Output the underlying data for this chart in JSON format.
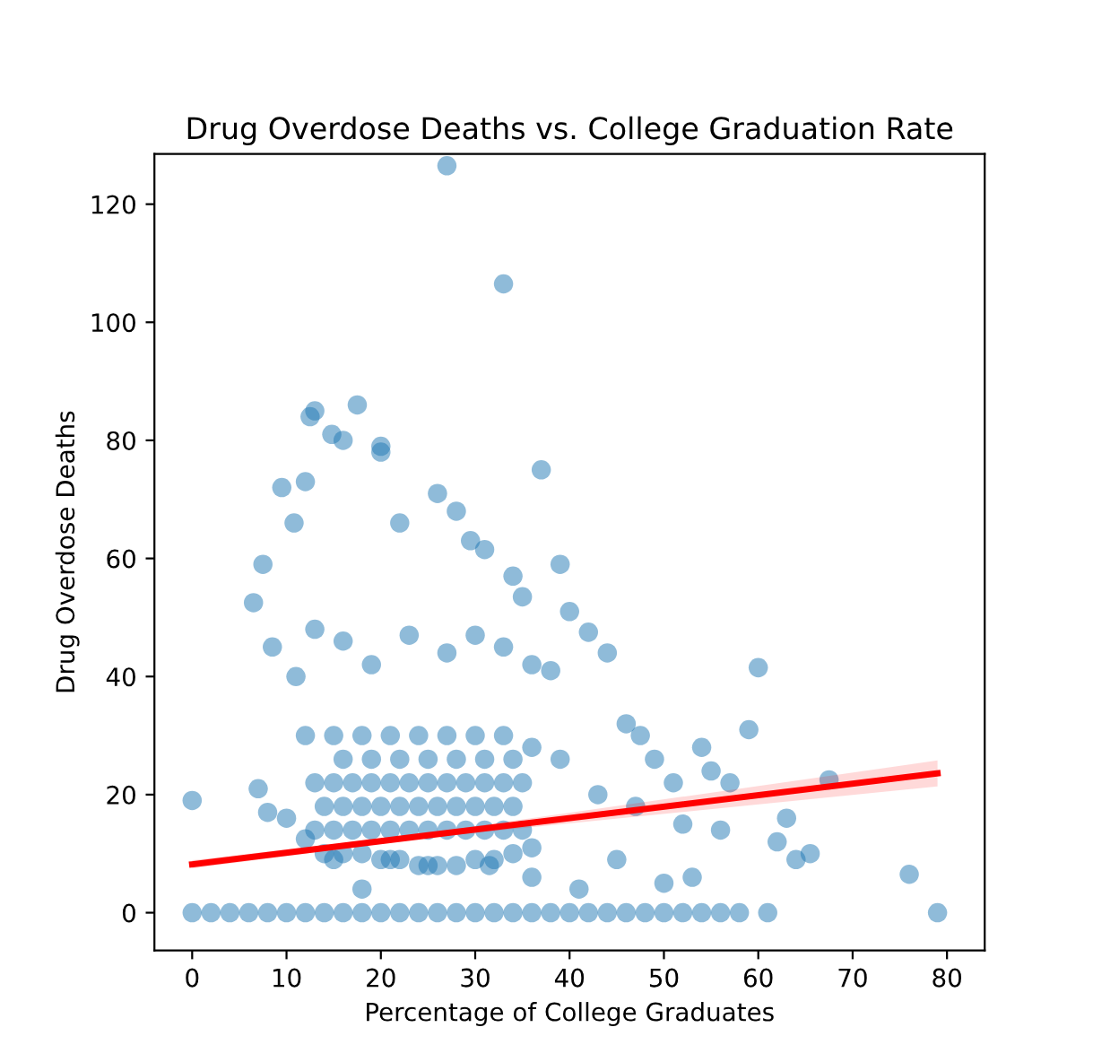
{
  "chart_data": {
    "type": "scatter",
    "title": "Drug Overdose Deaths vs. College Graduation Rate",
    "xlabel": "Percentage of College Graduates",
    "ylabel": "Drug Overdose Deaths",
    "xlim": [
      -4,
      84
    ],
    "ylim": [
      -6.4,
      128.5
    ],
    "xticks": [
      0,
      10,
      20,
      30,
      40,
      50,
      60,
      70,
      80
    ],
    "yticks": [
      0,
      20,
      40,
      60,
      80,
      100,
      120
    ],
    "grid": false,
    "legend": false,
    "series": [
      {
        "color": "#1f77b4",
        "marker": "circle",
        "x": [
          13,
          15,
          17,
          19,
          21,
          23,
          25,
          27,
          29,
          31,
          33,
          35,
          14,
          16,
          18,
          20,
          22,
          24,
          26,
          28,
          30,
          32,
          34,
          13,
          15,
          17,
          19,
          21,
          23,
          25,
          27,
          29,
          31,
          33,
          35,
          16,
          19,
          22,
          25,
          28,
          31,
          34,
          0,
          0,
          2,
          4,
          6,
          8,
          10,
          12,
          14,
          16,
          18,
          20,
          22,
          24,
          26,
          28,
          30,
          32,
          34,
          36,
          38,
          40,
          42,
          44,
          46,
          48,
          50,
          52,
          54,
          56,
          58,
          61,
          79,
          27,
          33,
          17.5,
          12.5,
          13,
          14.8,
          16,
          20,
          20,
          22,
          9.5,
          12,
          10.8,
          7.5,
          6.5,
          7,
          8,
          26,
          28,
          29.5,
          31,
          34,
          35,
          37,
          39,
          40,
          42,
          44,
          46,
          47.5,
          49,
          51,
          54,
          57,
          60,
          63,
          67.5,
          76,
          62,
          64,
          65.5,
          59,
          55,
          53,
          50,
          45,
          41,
          36,
          31.5,
          25,
          21,
          18,
          15,
          12,
          10,
          8.5,
          11,
          13,
          16,
          19,
          23,
          27,
          30,
          33,
          36,
          38,
          14,
          16,
          18,
          20,
          22,
          24,
          26,
          28,
          30,
          32,
          34,
          36,
          12,
          15,
          18,
          21,
          24,
          27,
          30,
          33,
          36,
          39,
          43,
          47,
          52,
          56
        ],
        "values": [
          14,
          14,
          14,
          14,
          14,
          14,
          14,
          14,
          14,
          14,
          14,
          14,
          18,
          18,
          18,
          18,
          18,
          18,
          18,
          18,
          18,
          18,
          18,
          22,
          22,
          22,
          22,
          22,
          22,
          22,
          22,
          22,
          22,
          22,
          22,
          26,
          26,
          26,
          26,
          26,
          26,
          26,
          19,
          0,
          0,
          0,
          0,
          0,
          0,
          0,
          0,
          0,
          0,
          0,
          0,
          0,
          0,
          0,
          0,
          0,
          0,
          0,
          0,
          0,
          0,
          0,
          0,
          0,
          0,
          0,
          0,
          0,
          0,
          0,
          0,
          126.5,
          106.5,
          86,
          84,
          85,
          81,
          80,
          79,
          78,
          66,
          72,
          73,
          66,
          59,
          52.5,
          21,
          17,
          71,
          68,
          63,
          61.5,
          57,
          53.5,
          75,
          59,
          51,
          47.5,
          44,
          32,
          30,
          26,
          22,
          28,
          22,
          41.5,
          16,
          22.5,
          6.5,
          12,
          9,
          10,
          31,
          24,
          6,
          5,
          9,
          4,
          6,
          8,
          8,
          9,
          4,
          9,
          12.5,
          16,
          45,
          40,
          48,
          46,
          42,
          47,
          44,
          47,
          45,
          42,
          41,
          10,
          10,
          10,
          9,
          9,
          8,
          8,
          8,
          9,
          9,
          10,
          11,
          30,
          30,
          30,
          30,
          30,
          30,
          30,
          30,
          28,
          26,
          20,
          18,
          15,
          14
        ]
      },
      {
        "type": "line",
        "color": "#ff0000",
        "x": [
          0,
          25,
          79
        ],
        "values": [
          8.2,
          13.1,
          23.6
        ],
        "lower": [
          7.5,
          12.7,
          21.4
        ],
        "upper": [
          8.9,
          13.5,
          25.8
        ]
      }
    ]
  }
}
